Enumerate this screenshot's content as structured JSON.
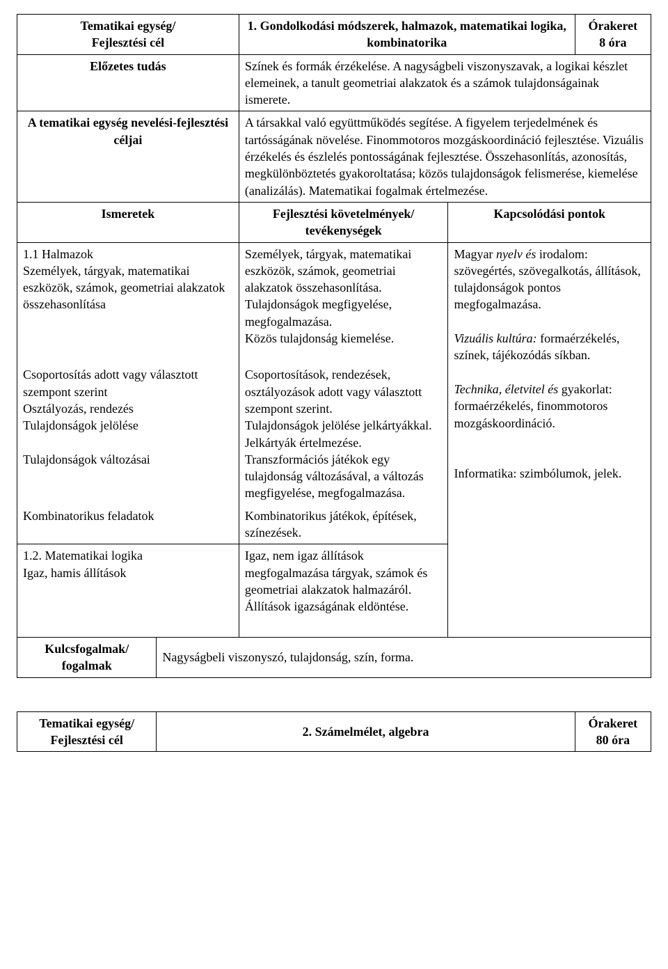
{
  "table1": {
    "header": {
      "unit_label": "Tematikai egység/\nFejlesztési cél",
      "title": "1. Gondolkodási módszerek, halmazok, matematikai logika, kombinatorika",
      "hours_label": "Órakeret\n8 óra"
    },
    "prior": {
      "label": "Előzetes tudás",
      "text": "Színek és formák érzékelése. A nagyságbeli viszonyszavak, a logikai készlet elemeinek, a tanult geometriai alakzatok és a számok tulajdonságainak ismerete."
    },
    "goals": {
      "label": "A tematikai egység nevelési-fejlesztési céljai",
      "text": "A társakkal való együttműködés segítése. A figyelem terjedelmének és tartósságának növelése. Finommotoros mozgáskoordináció fejlesztése. Vizuális érzékelés és észlelés pontosságának fejlesztése. Összehasonlítás, azonosítás, megkülönböztetés gyakoroltatása; közös tulajdonságok felismerése, kiemelése (analizálás). Matematikai fogalmak értelmezése."
    },
    "columns": {
      "c1": "Ismeretek",
      "c2": "Fejlesztési követelmények/\ntevékenységek",
      "c3": "Kapcsolódási pontok"
    },
    "rows": {
      "r1": {
        "ism": "1.1 Halmazok\nSzemélyek, tárgyak, matematikai eszközök, számok, geometriai alakzatok összehasonlítása",
        "fej": "Személyek, tárgyak, matematikai eszközök, számok, geometriai alakzatok összehasonlítása.\nTulajdonságok megfigyelése, megfogalmazása.\nKözös tulajdonság kiemelése."
      },
      "r2": {
        "ism": "Csoportosítás adott vagy választott szempont szerint\nOsztályozás, rendezés\nTulajdonságok jelölése\n\nTulajdonságok változásai",
        "fej": "Csoportosítások, rendezések, osztályozások adott vagy választott szempont szerint.\nTulajdonságok jelölése jelkártyákkal.\nJelkártyák értelmezése.\nTranszformációs játékok egy tulajdonság változásával, a változás megfigyelése, megfogalmazása."
      },
      "r3": {
        "ism": "Kombinatorikus feladatok",
        "fej": "Kombinatorikus játékok, építések, színezések."
      },
      "r4": {
        "ism": "1.2. Matematikai logika\nIgaz, hamis állítások",
        "fej": "Igaz, nem igaz állítások megfogalmazása tárgyak, számok és geometriai alakzatok halmazáról.\nÁllítások igazságának eldöntése."
      }
    },
    "kapcs": {
      "p1a": "Magyar ",
      "p1b": "nyelv és",
      "p1c": " irodalom:",
      "p1d": " szövegértés, szövegalkotás, állítások, tulajdonságok pontos megfogalmazása.",
      "p2a": "Vizuális kultúra:",
      "p2b": " formaérzékelés, színek, tájékozódás síkban.",
      "p3a": "Technika, életvitel és",
      "p3b": " gyakorlat:",
      "p3c": " formaérzékelés, finommotoros mozgáskoordináció.",
      "p4a": "Informatika:",
      "p4b": " szimbólumok, jelek."
    },
    "key": {
      "label": "Kulcsfogalmak/\nfogalmak",
      "text": "Nagyságbeli viszonyszó, tulajdonság, szín, forma."
    }
  },
  "table2": {
    "header": {
      "unit_label": "Tematikai egység/\nFejlesztési cél",
      "title": "2. Számelmélet, algebra",
      "hours_label": "Órakeret\n80 óra"
    }
  }
}
